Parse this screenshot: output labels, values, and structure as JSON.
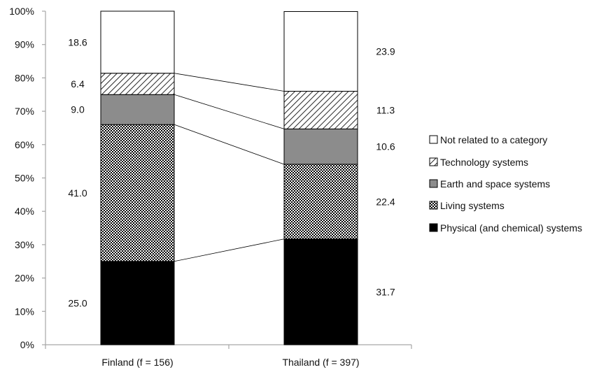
{
  "chart_data": {
    "type": "bar",
    "stacked": true,
    "percent_stacked": true,
    "categories": [
      "Finland (f = 156)",
      "Thailand (f = 397)"
    ],
    "series": [
      {
        "name": "Physical (and chemical) systems",
        "values": [
          25.0,
          31.7
        ],
        "fill": "solid-black"
      },
      {
        "name": "Living systems",
        "values": [
          41.0,
          22.4
        ],
        "fill": "checker-pattern"
      },
      {
        "name": "Earth and space systems",
        "values": [
          9.0,
          10.6
        ],
        "fill": "solid-gray"
      },
      {
        "name": "Technology systems",
        "values": [
          6.4,
          11.3
        ],
        "fill": "diagonal-hatch"
      },
      {
        "name": "Not related to a category",
        "values": [
          18.6,
          23.9
        ],
        "fill": "white"
      }
    ],
    "y_ticks": [
      "0%",
      "10%",
      "20%",
      "30%",
      "40%",
      "50%",
      "60%",
      "70%",
      "80%",
      "90%",
      "100%"
    ],
    "ylim": [
      0,
      100
    ],
    "legend_order": [
      "Not related to a category",
      "Technology systems",
      "Earth and space systems",
      "Living systems",
      "Physical (and chemical) systems"
    ],
    "legend_position": "right",
    "grid": false,
    "title": "",
    "xlabel": "",
    "ylabel": ""
  },
  "colors": {
    "black": "#000000",
    "gray": "#8c8c8c",
    "white": "#ffffff",
    "axis": "#a6a6a6"
  }
}
